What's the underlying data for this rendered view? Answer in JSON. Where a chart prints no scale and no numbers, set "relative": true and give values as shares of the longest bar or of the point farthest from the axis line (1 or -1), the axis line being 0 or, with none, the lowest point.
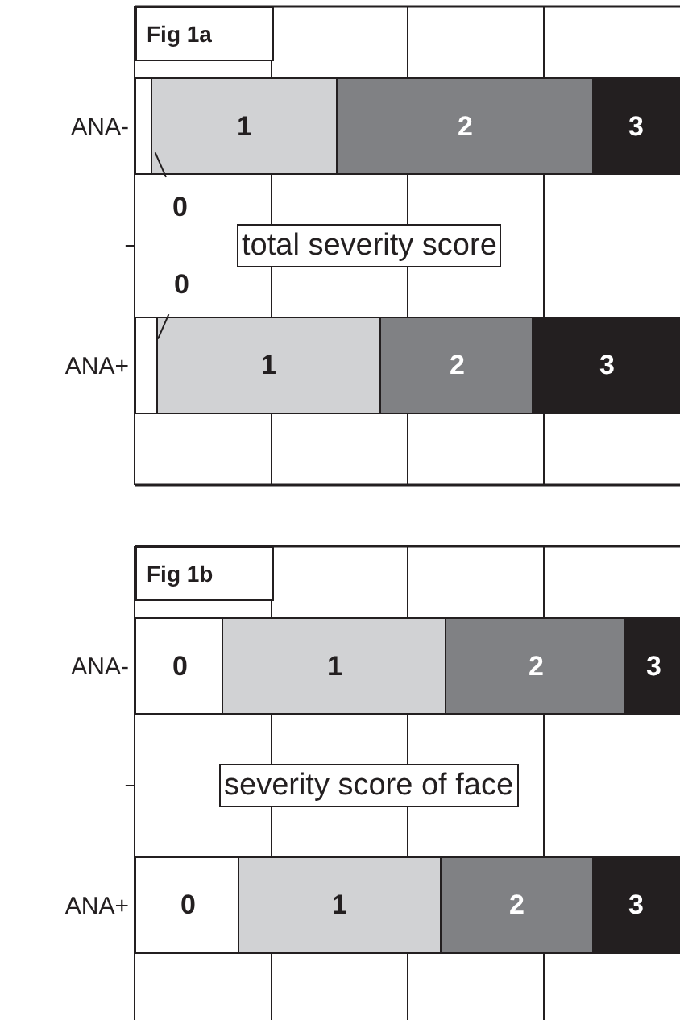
{
  "chart_data": [
    {
      "type": "bar",
      "orientation": "horizontal",
      "stacked": true,
      "relative": true,
      "grid": "x",
      "title": "Fig 1a",
      "annotations": [
        "total severity score"
      ],
      "categories": [
        "ANA-",
        "ANA+"
      ],
      "series": [
        {
          "name": "0",
          "color": "#ffffff",
          "values": [
            0.03,
            0.04
          ]
        },
        {
          "name": "1",
          "color": "#d1d2d4",
          "values": [
            0.34,
            0.41
          ]
        },
        {
          "name": "2",
          "color": "#808184",
          "values": [
            0.47,
            0.28
          ]
        },
        {
          "name": "3",
          "color": "#231f20",
          "values": [
            0.16,
            0.27
          ]
        }
      ]
    },
    {
      "type": "bar",
      "orientation": "horizontal",
      "stacked": true,
      "relative": true,
      "grid": "x",
      "title": "Fig 1b",
      "annotations": [
        "severity score of face"
      ],
      "categories": [
        "ANA-",
        "ANA+"
      ],
      "series": [
        {
          "name": "0",
          "color": "#ffffff",
          "values": [
            0.16,
            0.19
          ]
        },
        {
          "name": "1",
          "color": "#d1d2d4",
          "values": [
            0.41,
            0.37
          ]
        },
        {
          "name": "2",
          "color": "#808184",
          "values": [
            0.33,
            0.28
          ]
        },
        {
          "name": "3",
          "color": "#231f20",
          "values": [
            0.1,
            0.16
          ]
        }
      ]
    }
  ]
}
